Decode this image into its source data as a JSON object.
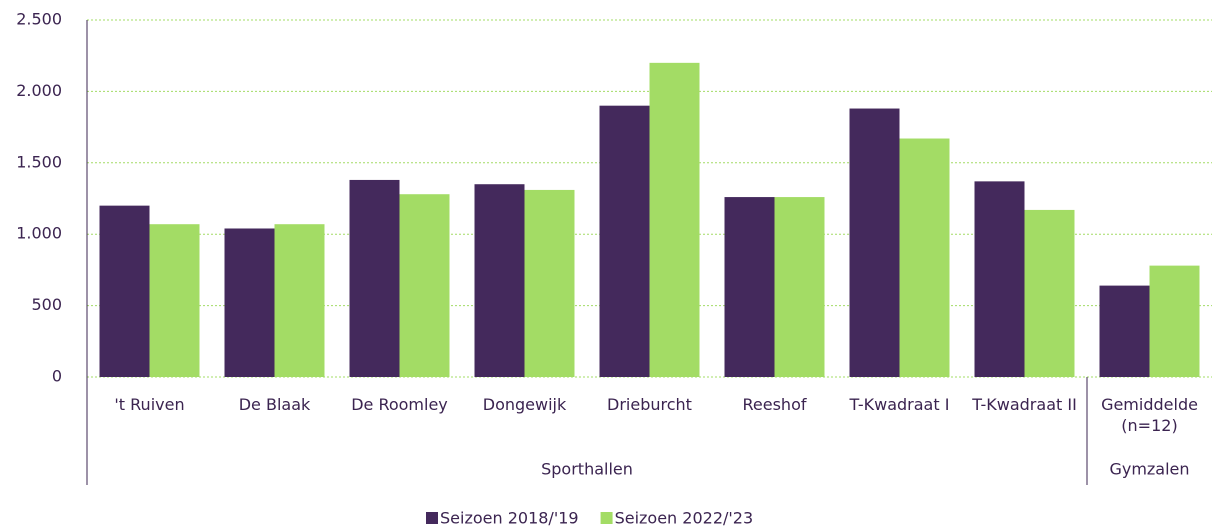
{
  "chart_data": {
    "type": "bar",
    "categories": [
      "'t Ruiven",
      "De Blaak",
      "De Roomley",
      "Dongewijk",
      "Drieburcht",
      "Reeshof",
      "T-Kwadraat I",
      "T-Kwadraat II",
      "Gemiddelde (n=12)"
    ],
    "groups": [
      {
        "label": "Sporthallen",
        "span": 8
      },
      {
        "label": "Gymzalen",
        "span": 1
      }
    ],
    "series": [
      {
        "name": "Seizoen 2018/'19",
        "color": "#44295c",
        "values": [
          1200,
          1040,
          1380,
          1350,
          1900,
          1260,
          1880,
          1370,
          640
        ]
      },
      {
        "name": "Seizoen 2022/'23",
        "color": "#a3dc65",
        "values": [
          1070,
          1070,
          1280,
          1310,
          2200,
          1260,
          1670,
          1170,
          780
        ]
      }
    ],
    "ylim": [
      0,
      2500
    ],
    "yticks": [
      0,
      500,
      {
        "value": 1000,
        "label": "1.000"
      },
      {
        "value": 1500,
        "label": "1.500"
      },
      {
        "value": 2000,
        "label": "2.000"
      },
      {
        "value": 2500,
        "label": "2.500"
      }
    ],
    "grid": true,
    "legend": "bottom"
  }
}
